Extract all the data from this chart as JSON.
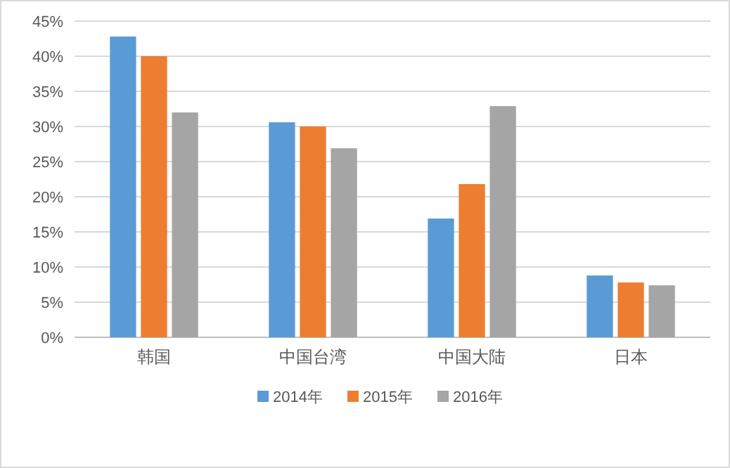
{
  "chart_data": {
    "type": "bar",
    "categories": [
      "韩国",
      "中国台湾",
      "中国大陆",
      "日本"
    ],
    "series": [
      {
        "name": "2014年",
        "color": "#5b9bd5",
        "values": [
          42.8,
          30.6,
          16.9,
          8.8
        ]
      },
      {
        "name": "2015年",
        "color": "#ed7d31",
        "values": [
          40,
          30,
          21.8,
          7.8
        ]
      },
      {
        "name": "2016年",
        "color": "#a5a5a5",
        "values": [
          32,
          26.9,
          32.9,
          7.4
        ]
      }
    ],
    "ylim": [
      0,
      45
    ],
    "yticks": [
      {
        "value": 0,
        "label": "0%"
      },
      {
        "value": 5,
        "label": "5%"
      },
      {
        "value": 10,
        "label": "10%"
      },
      {
        "value": 15,
        "label": "15%"
      },
      {
        "value": 20,
        "label": "20%"
      },
      {
        "value": 25,
        "label": "25%"
      },
      {
        "value": 30,
        "label": "30%"
      },
      {
        "value": 35,
        "label": "35%"
      },
      {
        "value": 40,
        "label": "40%"
      },
      {
        "value": 45,
        "label": "45%"
      }
    ],
    "grid": "y",
    "legend": "bottom"
  }
}
